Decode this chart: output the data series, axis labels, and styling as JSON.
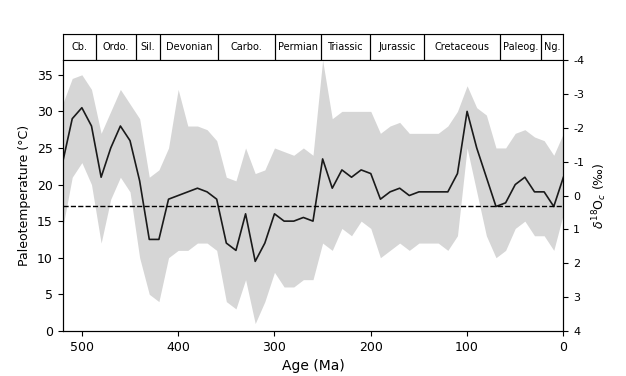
{
  "title": "",
  "xlabel": "Age (Ma)",
  "ylabel_left": "Paleotemperature (°C)",
  "ylabel_right": "δ¹⁸Oₑ (‰)",
  "xlim": [
    520,
    0
  ],
  "ylim_left": [
    0,
    37
  ],
  "ylim_right": [
    4,
    -4
  ],
  "dashed_line_y": 17.0,
  "geological_periods": [
    {
      "name": "Cb.",
      "start": 520,
      "end": 485
    },
    {
      "name": "Ordo.",
      "start": 485,
      "end": 444
    },
    {
      "name": "Sil.",
      "start": 444,
      "end": 419
    },
    {
      "name": "Devonian",
      "start": 419,
      "end": 359
    },
    {
      "name": "Carbo.",
      "start": 359,
      "end": 299
    },
    {
      "name": "Permian",
      "start": 299,
      "end": 252
    },
    {
      "name": "Triassic",
      "start": 252,
      "end": 201
    },
    {
      "name": "Jurassic",
      "start": 201,
      "end": 145
    },
    {
      "name": "Cretaceous",
      "start": 145,
      "end": 66
    },
    {
      "name": "Paleog.",
      "start": 66,
      "end": 23
    },
    {
      "name": "Ng.",
      "start": 23,
      "end": 0
    }
  ],
  "age_mean": [
    520,
    510,
    500,
    490,
    480,
    470,
    460,
    450,
    440,
    430,
    420,
    410,
    400,
    390,
    380,
    370,
    360,
    350,
    340,
    330,
    320,
    310,
    300,
    290,
    280,
    270,
    260,
    250,
    240,
    230,
    220,
    210,
    200,
    190,
    180,
    170,
    160,
    150,
    140,
    130,
    120,
    110,
    100,
    90,
    80,
    70,
    60,
    50,
    40,
    30,
    20,
    10,
    0
  ],
  "temp_mean": [
    23,
    29,
    30.5,
    28,
    21,
    25,
    28,
    26,
    20.5,
    12.5,
    12.5,
    18,
    18.5,
    19,
    19.5,
    19,
    18,
    12,
    11,
    16,
    9.5,
    12,
    16,
    15,
    15,
    15.5,
    15,
    23.5,
    19.5,
    22,
    21,
    22,
    21.5,
    18,
    19,
    19.5,
    18.5,
    19,
    19,
    19,
    19,
    21.5,
    30,
    25,
    21,
    17,
    17.5,
    20,
    21,
    19,
    19,
    17,
    21
  ],
  "temp_upper": [
    31,
    34.5,
    35,
    33,
    27,
    30,
    33,
    31,
    29,
    21,
    22,
    25,
    33,
    28,
    28,
    27.5,
    26,
    21,
    20.5,
    25,
    21.5,
    22,
    25,
    24.5,
    24,
    25,
    24,
    37,
    29,
    30,
    30,
    30,
    30,
    27,
    28,
    28.5,
    27,
    27,
    27,
    27,
    28,
    30,
    33.5,
    30.5,
    29.5,
    25,
    25,
    27,
    27.5,
    26.5,
    26,
    24,
    27
  ],
  "temp_lower": [
    14,
    21,
    23,
    20,
    12,
    18,
    21,
    19,
    10,
    5,
    4,
    10,
    11,
    11,
    12,
    12,
    11,
    4,
    3,
    7,
    1,
    4,
    8,
    6,
    6,
    7,
    7,
    12,
    11,
    14,
    13,
    15,
    14,
    10,
    11,
    12,
    11,
    12,
    12,
    12,
    11,
    13,
    25,
    19,
    13,
    10,
    11,
    14,
    15,
    13,
    13,
    11,
    16
  ],
  "line_color": "#1a1a1a",
  "fill_color": "#bbbbbb",
  "fill_alpha": 0.6,
  "background_color": "#ffffff"
}
